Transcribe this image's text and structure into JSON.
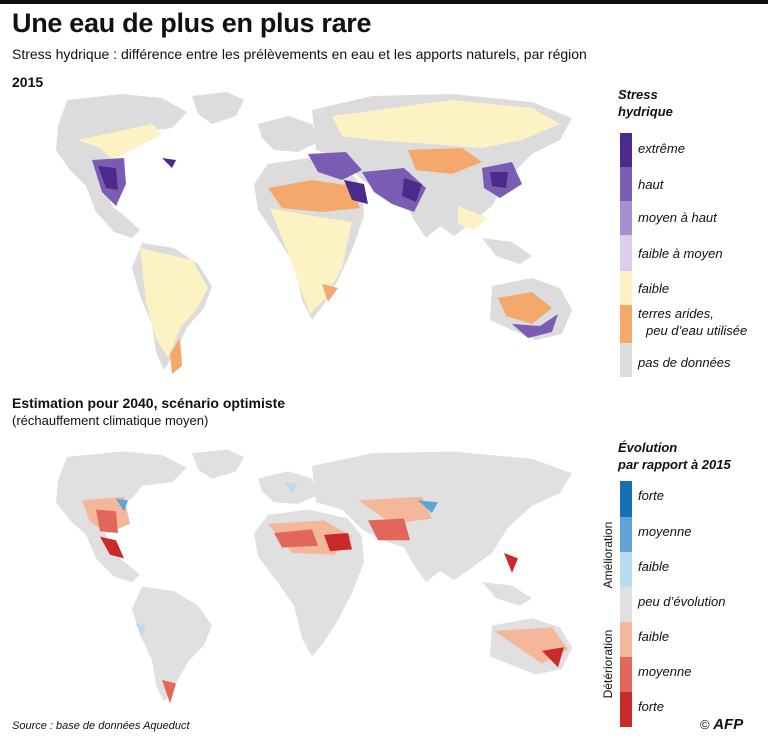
{
  "title": "Une eau de plus en plus rare",
  "subtitle": "Stress hydrique : différence entre les prélèvements en eau et les apports naturels, par région",
  "section1": {
    "year_label": "2015"
  },
  "section2": {
    "title": "Estimation pour 2040, scénario optimiste",
    "subtitle": "(réchauffement climatique moyen)"
  },
  "legend1": {
    "title_line1": "Stress",
    "title_line2": "hydrique",
    "items": [
      {
        "label": "extrême",
        "color": "#4b2a8c"
      },
      {
        "label": "haut",
        "color": "#7a5cb3"
      },
      {
        "label": "moyen à haut",
        "color": "#a590cf"
      },
      {
        "label": "faible à moyen",
        "color": "#d9cfea"
      },
      {
        "label": "faible",
        "color": "#fdf2c4"
      },
      {
        "label": "terres arides,",
        "label2": "peu d’eau utilisée",
        "color": "#f5a86b"
      },
      {
        "label": "pas de données",
        "color": "#dcdcdc"
      }
    ]
  },
  "legend2": {
    "title_line1": "Évolution",
    "title_line2": "par rapport à 2015",
    "group_improve": "Amélioration",
    "group_worse": "Détérioration",
    "items": [
      {
        "label": "forte",
        "color": "#1570b5"
      },
      {
        "label": "moyenne",
        "color": "#5fa4d4"
      },
      {
        "label": "faible",
        "color": "#b9dcef"
      },
      {
        "label": "peu d’évolution",
        "color": "#e0e0e0"
      },
      {
        "label": "faible",
        "color": "#f4b79b"
      },
      {
        "label": "moyenne",
        "color": "#e2675a"
      },
      {
        "label": "forte",
        "color": "#c92a2a"
      }
    ]
  },
  "source": "Source : base de données Aqueduct",
  "credit": {
    "symbol": "©",
    "brand": "AFP"
  }
}
